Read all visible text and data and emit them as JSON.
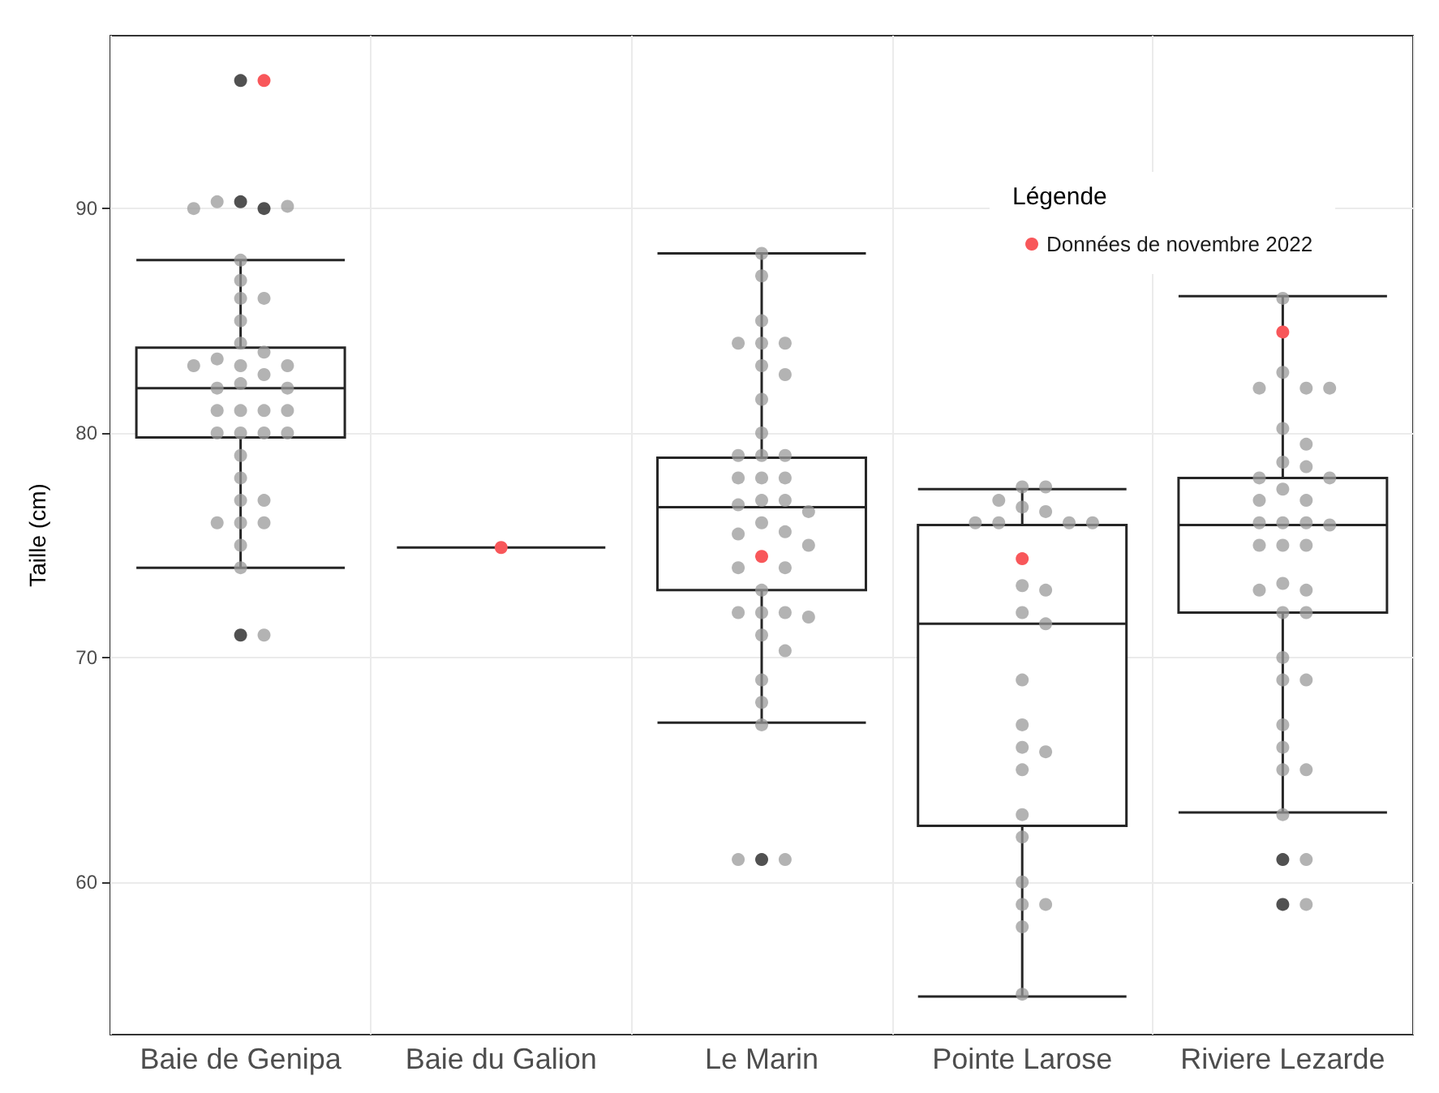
{
  "chart_data": {
    "type": "box",
    "ylabel": "Taille (cm)",
    "legend_title": "Légende",
    "categories": [
      "Baie de Genipa",
      "Baie du Galion",
      "Le Marin",
      "Pointe Larose",
      "Riviere Lezarde"
    ],
    "ylim": [
      53.2,
      97.7
    ],
    "yticks": [
      60,
      70,
      80,
      90
    ],
    "grid": true,
    "legend": "top right",
    "marker": "circle",
    "color": "#262626",
    "boxes": [
      {
        "low": 74.0,
        "q1": 79.8,
        "median": 82.0,
        "q3": 83.8,
        "high": 87.7,
        "outliers": [
          95.7,
          90.3,
          90.0,
          71.0
        ]
      },
      {
        "low": 74.9,
        "q1": 74.9,
        "median": 74.9,
        "q3": 74.9,
        "high": 74.9
      },
      {
        "low": 67.1,
        "q1": 73.0,
        "median": 76.7,
        "q3": 78.9,
        "high": 88.0,
        "outliers": [
          61.0
        ]
      },
      {
        "low": 54.9,
        "q1": 62.5,
        "median": 71.5,
        "q3": 75.9,
        "high": 77.5
      },
      {
        "low": 63.1,
        "q1": 72.0,
        "median": 75.9,
        "q3": 78.0,
        "high": 86.1,
        "outliers": [
          61.0,
          59.0
        ]
      }
    ],
    "series": [
      {
        "type": "scatter",
        "color": "#999999",
        "x": [
          "Baie de Genipa",
          "Baie de Genipa",
          "Baie de Genipa",
          "Baie de Genipa",
          "Baie de Genipa",
          "Baie de Genipa",
          "Baie de Genipa",
          "Baie de Genipa",
          "Baie de Genipa",
          "Baie de Genipa",
          "Baie de Genipa",
          "Baie de Genipa",
          "Baie de Genipa",
          "Baie de Genipa",
          "Baie de Genipa",
          "Baie de Genipa",
          "Baie de Genipa",
          "Baie de Genipa",
          "Baie de Genipa",
          "Baie de Genipa",
          "Baie de Genipa",
          "Baie de Genipa",
          "Baie de Genipa",
          "Baie de Genipa",
          "Baie de Genipa",
          "Baie de Genipa",
          "Baie de Genipa",
          "Baie de Genipa",
          "Baie de Genipa",
          "Baie de Genipa",
          "Baie de Genipa",
          "Baie de Genipa",
          "Baie de Genipa",
          "Baie de Genipa",
          "Baie de Genipa",
          "Baie de Genipa",
          "Le Marin",
          "Le Marin",
          "Le Marin",
          "Le Marin",
          "Le Marin",
          "Le Marin",
          "Le Marin",
          "Le Marin",
          "Le Marin",
          "Le Marin",
          "Le Marin",
          "Le Marin",
          "Le Marin",
          "Le Marin",
          "Le Marin",
          "Le Marin",
          "Le Marin",
          "Le Marin",
          "Le Marin",
          "Le Marin",
          "Le Marin",
          "Le Marin",
          "Le Marin",
          "Le Marin",
          "Le Marin",
          "Le Marin",
          "Le Marin",
          "Le Marin",
          "Le Marin",
          "Le Marin",
          "Le Marin",
          "Le Marin",
          "Le Marin",
          "Le Marin",
          "Le Marin",
          "Le Marin",
          "Le Marin",
          "Le Marin",
          "Pointe Larose",
          "Pointe Larose",
          "Pointe Larose",
          "Pointe Larose",
          "Pointe Larose",
          "Pointe Larose",
          "Pointe Larose",
          "Pointe Larose",
          "Pointe Larose",
          "Pointe Larose",
          "Pointe Larose",
          "Pointe Larose",
          "Pointe Larose",
          "Pointe Larose",
          "Pointe Larose",
          "Pointe Larose",
          "Pointe Larose",
          "Pointe Larose",
          "Pointe Larose",
          "Pointe Larose",
          "Pointe Larose",
          "Pointe Larose",
          "Pointe Larose",
          "Pointe Larose",
          "Pointe Larose",
          "Riviere Lezarde",
          "Riviere Lezarde",
          "Riviere Lezarde",
          "Riviere Lezarde",
          "Riviere Lezarde",
          "Riviere Lezarde",
          "Riviere Lezarde",
          "Riviere Lezarde",
          "Riviere Lezarde",
          "Riviere Lezarde",
          "Riviere Lezarde",
          "Riviere Lezarde",
          "Riviere Lezarde",
          "Riviere Lezarde",
          "Riviere Lezarde",
          "Riviere Lezarde",
          "Riviere Lezarde",
          "Riviere Lezarde",
          "Riviere Lezarde",
          "Riviere Lezarde",
          "Riviere Lezarde",
          "Riviere Lezarde",
          "Riviere Lezarde",
          "Riviere Lezarde",
          "Riviere Lezarde",
          "Riviere Lezarde",
          "Riviere Lezarde",
          "Riviere Lezarde",
          "Riviere Lezarde",
          "Riviere Lezarde",
          "Riviere Lezarde",
          "Riviere Lezarde",
          "Riviere Lezarde",
          "Riviere Lezarde",
          "Riviere Lezarde",
          "Riviere Lezarde"
        ],
        "values": [
          90.3,
          90.1,
          90.0,
          87.7,
          86.8,
          86.0,
          86.0,
          85.0,
          84.0,
          83.6,
          83.3,
          83.0,
          83.0,
          83.0,
          82.6,
          82.2,
          82.0,
          82.0,
          81.0,
          81.0,
          81.0,
          81.0,
          80.0,
          80.0,
          80.0,
          80.0,
          79.0,
          78.0,
          77.0,
          77.0,
          76.0,
          76.0,
          76.0,
          75.0,
          74.0,
          71.0,
          88.0,
          87.0,
          85.0,
          84.0,
          84.0,
          84.0,
          83.0,
          82.6,
          81.5,
          80.0,
          79.0,
          79.0,
          79.0,
          78.0,
          78.0,
          78.0,
          77.0,
          77.0,
          76.8,
          76.5,
          76.0,
          75.6,
          75.5,
          75.0,
          74.0,
          74.0,
          73.0,
          72.0,
          72.0,
          72.0,
          71.8,
          71.0,
          70.3,
          69.0,
          68.0,
          67.0,
          61.0,
          61.0,
          77.6,
          77.6,
          77.0,
          76.7,
          76.5,
          76.0,
          76.0,
          76.0,
          76.0,
          73.2,
          73.0,
          72.0,
          71.5,
          69.0,
          67.0,
          66.0,
          65.8,
          65.0,
          63.0,
          62.0,
          60.0,
          59.0,
          59.0,
          58.0,
          55.0,
          86.0,
          82.7,
          82.0,
          82.0,
          82.0,
          80.2,
          79.5,
          78.7,
          78.5,
          78.0,
          78.0,
          77.5,
          77.0,
          77.0,
          76.0,
          76.0,
          76.0,
          75.9,
          75.0,
          75.0,
          75.0,
          73.3,
          73.0,
          73.0,
          72.0,
          72.0,
          70.0,
          69.0,
          69.0,
          67.0,
          66.0,
          65.0,
          65.0,
          63.0,
          61.0,
          59.0
        ]
      },
      {
        "type": "scatter",
        "name": "Données de novembre 2022",
        "color": "#f8575a",
        "x": [
          "Baie de Genipa",
          "Baie du Galion",
          "Le Marin",
          "Pointe Larose",
          "Riviere Lezarde"
        ],
        "values": [
          95.7,
          74.9,
          74.5,
          74.4,
          84.5
        ]
      }
    ]
  }
}
